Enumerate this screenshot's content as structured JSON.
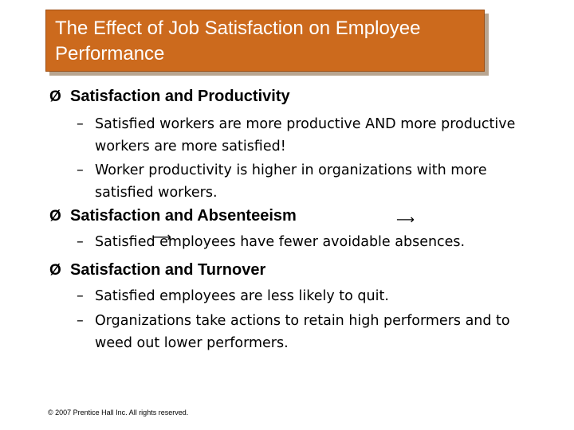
{
  "title": "The Effect of Job Satisfaction on Employee Performance",
  "bullet_marker": "Ø",
  "dash_marker": "–",
  "arrow_glyph": "⟶",
  "colors": {
    "title_bg": "#cc6a1d",
    "title_text": "#ffffff",
    "body_text": "#000000"
  },
  "sections": [
    {
      "heading": "Satisfaction and Productivity",
      "points": [
        "Satisfied workers are more productive AND more productive workers are more satisfied!",
        "Worker productivity is higher in organizations with more satisfied workers."
      ]
    },
    {
      "heading": "Satisfaction and Absenteeism",
      "points": [
        "Satisfied employees have fewer avoidable absences."
      ]
    },
    {
      "heading": "Satisfaction and Turnover",
      "points": [
        "Satisfied employees are less likely to quit.",
        "Organizations take actions to retain high performers and to weed out lower performers."
      ]
    }
  ],
  "footer": "© 2007 Prentice Hall Inc. All rights reserved."
}
